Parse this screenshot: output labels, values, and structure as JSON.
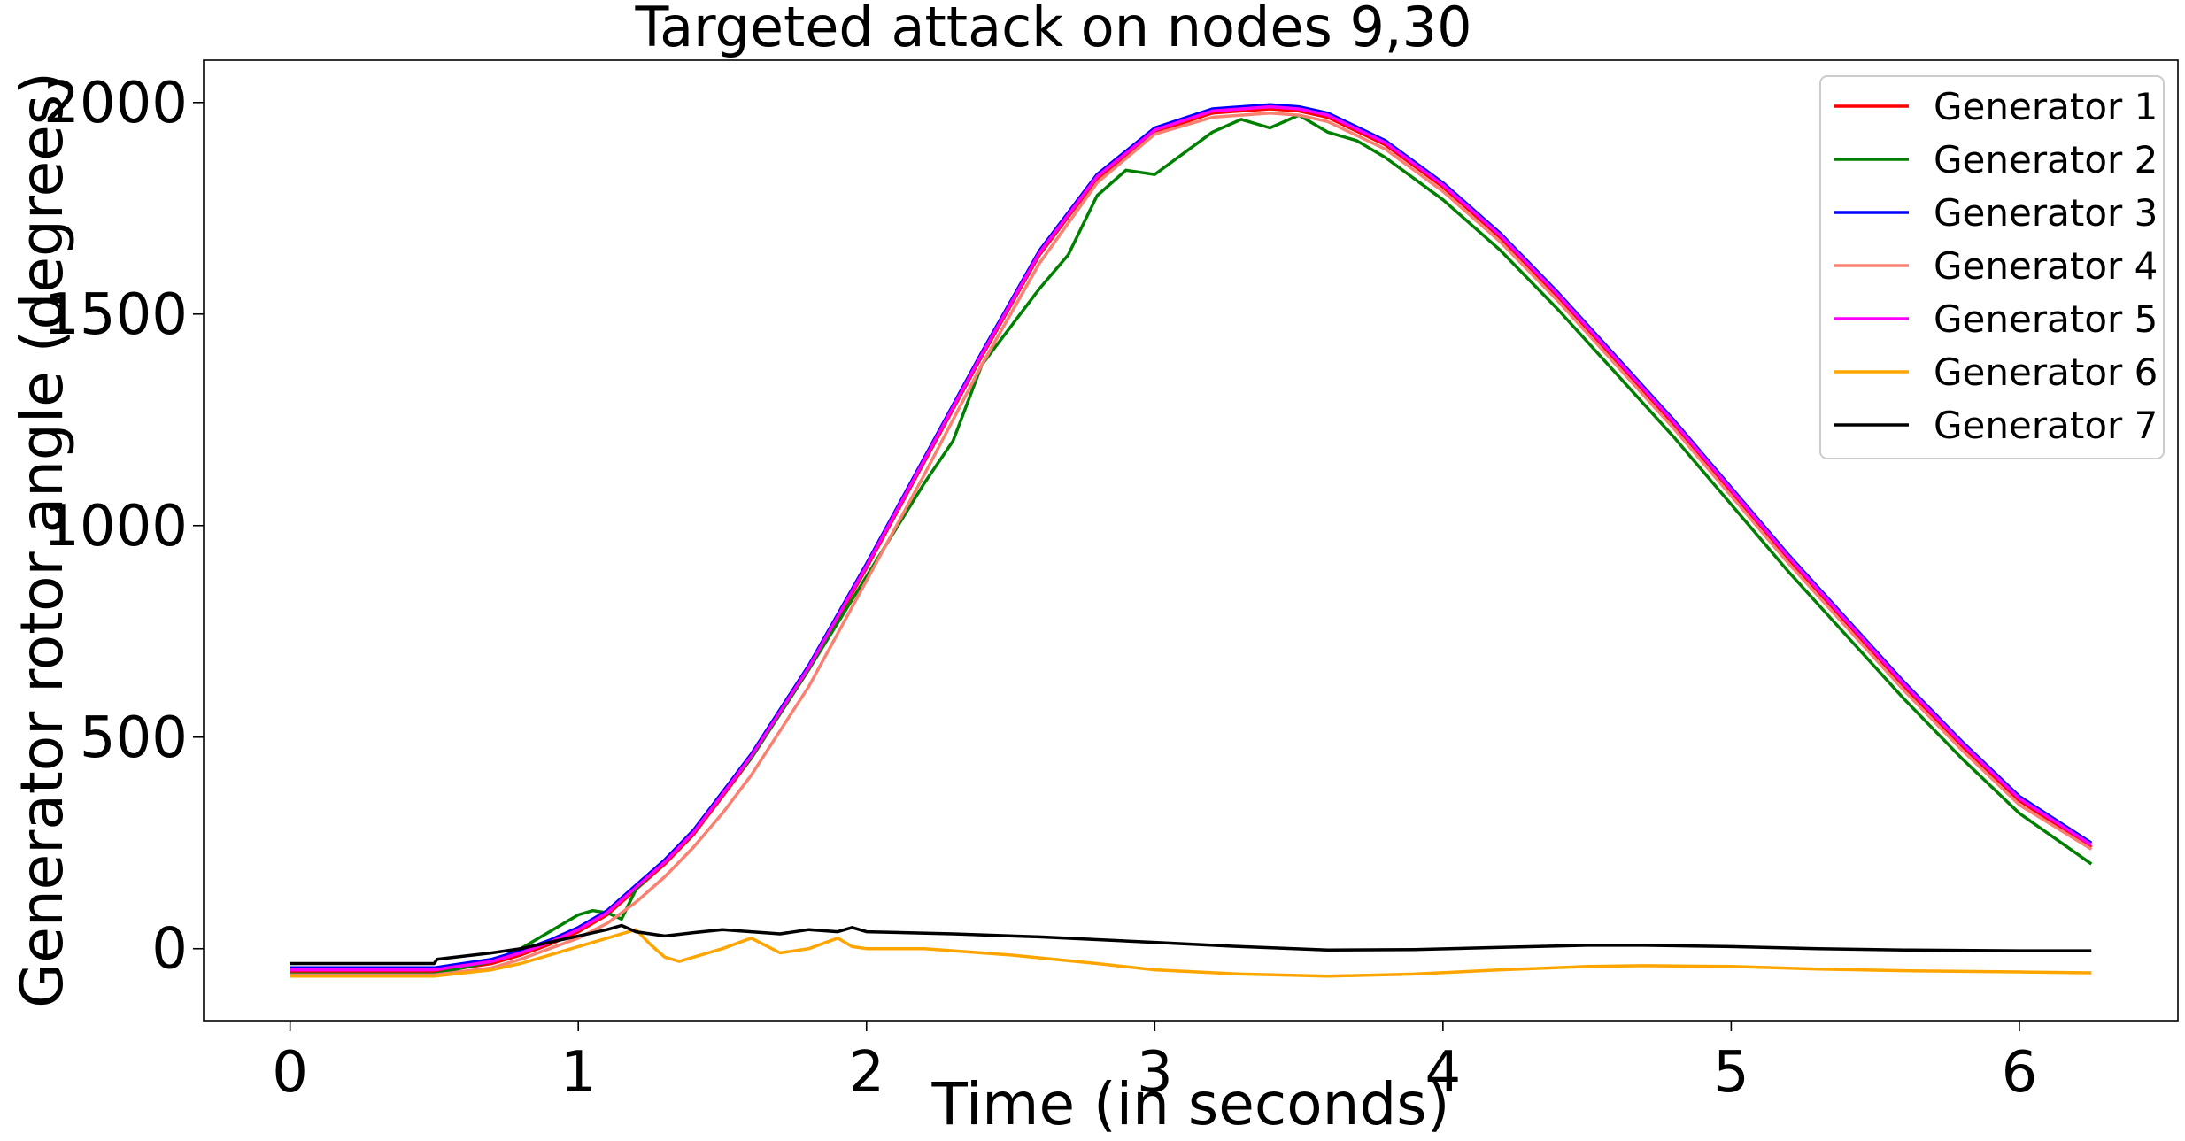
{
  "chart_data": {
    "type": "line",
    "title": "Targeted attack on nodes 9,30",
    "xlabel": "Time (in seconds)",
    "ylabel": "Generator rotor angle (degrees)",
    "xlim": [
      -0.3,
      6.55
    ],
    "ylim": [
      -170,
      2100
    ],
    "xticks": [
      0,
      1,
      2,
      3,
      4,
      5,
      6
    ],
    "yticks": [
      0,
      500,
      1000,
      1500,
      2000
    ],
    "grid": false,
    "legend_position": "top-right",
    "series": [
      {
        "name": "Generator 1",
        "color": "#ff0000",
        "x": [
          0,
          0.5,
          0.7,
          0.8,
          0.9,
          1.0,
          1.1,
          1.2,
          1.3,
          1.4,
          1.5,
          1.6,
          1.8,
          2.0,
          2.2,
          2.4,
          2.6,
          2.8,
          3.0,
          3.2,
          3.4,
          3.5,
          3.6,
          3.8,
          4.0,
          4.2,
          4.4,
          4.6,
          4.8,
          5.0,
          5.2,
          5.4,
          5.6,
          5.8,
          6.0,
          6.25
        ],
        "y": [
          -55,
          -55,
          -35,
          -15,
          10,
          40,
          80,
          140,
          200,
          270,
          360,
          450,
          660,
          900,
          1150,
          1400,
          1640,
          1820,
          1930,
          1975,
          1985,
          1980,
          1965,
          1900,
          1800,
          1680,
          1540,
          1390,
          1240,
          1080,
          920,
          770,
          620,
          480,
          350,
          240
        ]
      },
      {
        "name": "Generator 2",
        "color": "#008000",
        "x": [
          0,
          0.5,
          0.7,
          0.8,
          0.9,
          1.0,
          1.05,
          1.1,
          1.15,
          1.2,
          1.3,
          1.4,
          1.5,
          1.6,
          1.8,
          2.0,
          2.2,
          2.3,
          2.4,
          2.6,
          2.7,
          2.8,
          2.9,
          3.0,
          3.1,
          3.2,
          3.3,
          3.4,
          3.5,
          3.6,
          3.7,
          3.8,
          4.0,
          4.2,
          4.4,
          4.6,
          4.8,
          5.0,
          5.2,
          5.4,
          5.6,
          5.8,
          6.0,
          6.25
        ],
        "y": [
          -60,
          -60,
          -30,
          0,
          40,
          80,
          90,
          85,
          70,
          140,
          210,
          280,
          370,
          450,
          660,
          880,
          1100,
          1200,
          1380,
          1560,
          1640,
          1780,
          1840,
          1830,
          1880,
          1930,
          1960,
          1940,
          1970,
          1930,
          1910,
          1870,
          1770,
          1650,
          1510,
          1360,
          1210,
          1050,
          890,
          740,
          590,
          450,
          320,
          200
        ]
      },
      {
        "name": "Generator 3",
        "color": "#0000ff",
        "x": [
          0,
          0.5,
          0.7,
          0.8,
          0.9,
          1.0,
          1.1,
          1.2,
          1.3,
          1.4,
          1.5,
          1.6,
          1.8,
          2.0,
          2.2,
          2.4,
          2.6,
          2.8,
          3.0,
          3.2,
          3.4,
          3.5,
          3.6,
          3.8,
          4.0,
          4.2,
          4.4,
          4.6,
          4.8,
          5.0,
          5.2,
          5.4,
          5.6,
          5.8,
          6.0,
          6.25
        ],
        "y": [
          -45,
          -45,
          -25,
          -5,
          20,
          50,
          90,
          150,
          210,
          280,
          370,
          460,
          670,
          910,
          1160,
          1410,
          1650,
          1830,
          1940,
          1985,
          1995,
          1990,
          1975,
          1910,
          1810,
          1690,
          1550,
          1400,
          1250,
          1090,
          930,
          780,
          630,
          490,
          360,
          250
        ]
      },
      {
        "name": "Generator 4",
        "color": "#fa8072",
        "x": [
          0,
          0.5,
          0.7,
          0.8,
          0.9,
          1.0,
          1.1,
          1.2,
          1.3,
          1.4,
          1.5,
          1.6,
          1.8,
          2.0,
          2.2,
          2.4,
          2.6,
          2.8,
          3.0,
          3.2,
          3.4,
          3.5,
          3.6,
          3.8,
          4.0,
          4.2,
          4.4,
          4.6,
          4.8,
          5.0,
          5.2,
          5.4,
          5.6,
          5.8,
          6.0,
          6.25
        ],
        "y": [
          -62,
          -62,
          -45,
          -25,
          0,
          25,
          60,
          110,
          170,
          240,
          320,
          410,
          620,
          870,
          1120,
          1380,
          1620,
          1810,
          1925,
          1965,
          1975,
          1970,
          1955,
          1890,
          1790,
          1670,
          1530,
          1380,
          1230,
          1070,
          910,
          760,
          610,
          470,
          340,
          235
        ]
      },
      {
        "name": "Generator 5",
        "color": "#ff00ff",
        "x": [
          0,
          0.5,
          0.7,
          0.8,
          0.9,
          1.0,
          1.1,
          1.2,
          1.3,
          1.4,
          1.5,
          1.6,
          1.8,
          2.0,
          2.2,
          2.4,
          2.6,
          2.8,
          3.0,
          3.2,
          3.4,
          3.5,
          3.6,
          3.8,
          4.0,
          4.2,
          4.4,
          4.6,
          4.8,
          5.0,
          5.2,
          5.4,
          5.6,
          5.8,
          6.0,
          6.25
        ],
        "y": [
          -50,
          -50,
          -30,
          -10,
          15,
          45,
          85,
          145,
          205,
          275,
          365,
          455,
          665,
          905,
          1155,
          1405,
          1645,
          1825,
          1935,
          1980,
          1990,
          1985,
          1970,
          1905,
          1805,
          1685,
          1545,
          1395,
          1245,
          1085,
          925,
          775,
          625,
          485,
          355,
          245
        ]
      },
      {
        "name": "Generator 6",
        "color": "#ffa500",
        "x": [
          0,
          0.5,
          0.7,
          0.8,
          0.9,
          1.0,
          1.1,
          1.2,
          1.25,
          1.3,
          1.35,
          1.4,
          1.5,
          1.6,
          1.7,
          1.8,
          1.9,
          1.95,
          2.0,
          2.2,
          2.5,
          2.8,
          3.0,
          3.3,
          3.6,
          3.9,
          4.2,
          4.5,
          4.7,
          5.0,
          5.3,
          5.6,
          6.0,
          6.25
        ],
        "y": [
          -65,
          -65,
          -50,
          -35,
          -15,
          5,
          25,
          45,
          10,
          -20,
          -30,
          -20,
          0,
          25,
          -10,
          0,
          25,
          5,
          0,
          0,
          -15,
          -35,
          -50,
          -60,
          -65,
          -60,
          -50,
          -42,
          -40,
          -42,
          -48,
          -52,
          -55,
          -57
        ]
      },
      {
        "name": "Generator 7",
        "color": "#000000",
        "x": [
          0,
          0.5,
          0.51,
          0.7,
          0.8,
          0.9,
          1.0,
          1.1,
          1.15,
          1.2,
          1.3,
          1.4,
          1.5,
          1.6,
          1.7,
          1.8,
          1.9,
          1.95,
          2.0,
          2.3,
          2.6,
          3.0,
          3.3,
          3.6,
          3.9,
          4.2,
          4.5,
          4.7,
          5.0,
          5.3,
          5.6,
          6.0,
          6.25
        ],
        "y": [
          -35,
          -35,
          -25,
          -10,
          0,
          15,
          30,
          45,
          55,
          40,
          30,
          38,
          45,
          40,
          35,
          45,
          40,
          50,
          40,
          35,
          28,
          15,
          5,
          -3,
          -2,
          3,
          8,
          8,
          5,
          0,
          -3,
          -5,
          -5
        ]
      }
    ]
  }
}
